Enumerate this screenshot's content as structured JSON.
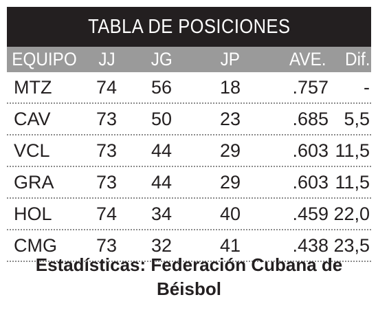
{
  "table": {
    "title": "TABLA DE POSICIONES",
    "headers": {
      "team": "EQUIPO",
      "jj": "JJ",
      "jg": "JG",
      "jp": "JP",
      "ave": "AVE.",
      "dif": "Dif."
    },
    "rows": [
      {
        "team": "MTZ",
        "jj": "74",
        "jg": "56",
        "jp": "18",
        "ave": ".757",
        "dif": "-"
      },
      {
        "team": "CAV",
        "jj": "73",
        "jg": "50",
        "jp": "23",
        "ave": ".685",
        "dif": "5,5"
      },
      {
        "team": "VCL",
        "jj": "73",
        "jg": "44",
        "jp": "29",
        "ave": ".603",
        "dif": "11,5"
      },
      {
        "team": "GRA",
        "jj": "73",
        "jg": "44",
        "jp": "29",
        "ave": ".603",
        "dif": "11,5"
      },
      {
        "team": "HOL",
        "jj": "74",
        "jg": "34",
        "jp": "40",
        "ave": ".459",
        "dif": "22,0"
      },
      {
        "team": "CMG",
        "jj": "73",
        "jg": "32",
        "jp": "41",
        "ave": ".438",
        "dif": "23,5"
      }
    ]
  },
  "source": {
    "line1": "Estadísticas: Federación Cubana de",
    "line2": "Béisbol"
  },
  "colors": {
    "title_bg": "#231f20",
    "header_bg": "#9a9a9a",
    "text": "#231f20"
  }
}
